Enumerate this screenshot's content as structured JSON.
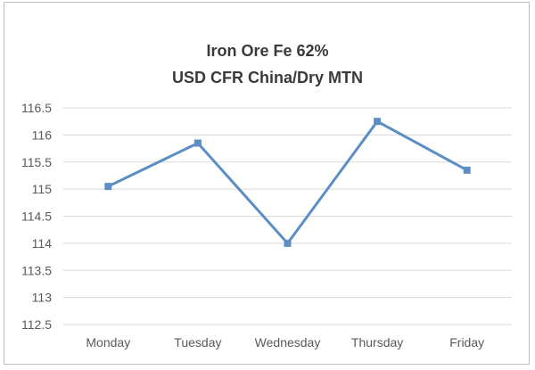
{
  "chart_data": {
    "type": "line",
    "title": [
      "Iron Ore Fe 62%",
      "USD CFR China/Dry MTN"
    ],
    "xlabel": "",
    "ylabel": "",
    "categories": [
      "Monday",
      "Tuesday",
      "Wednesday",
      "Thursday",
      "Friday"
    ],
    "series": [
      {
        "values": [
          115.05,
          115.85,
          114.0,
          116.25,
          115.35
        ]
      }
    ],
    "ylim": [
      112.5,
      116.5
    ],
    "yticks": [
      116.5,
      116,
      115.5,
      115,
      114.5,
      114,
      113.5,
      113,
      112.5
    ],
    "ytick_labels": [
      "116.5",
      "116",
      "115.5",
      "115",
      "114.5",
      "114",
      "113.5",
      "113",
      "112.5"
    ],
    "grid": true,
    "legend": "none",
    "colors": {
      "series": "#5b8ec4",
      "grid": "#d9d9d9",
      "text": "#595959"
    }
  }
}
